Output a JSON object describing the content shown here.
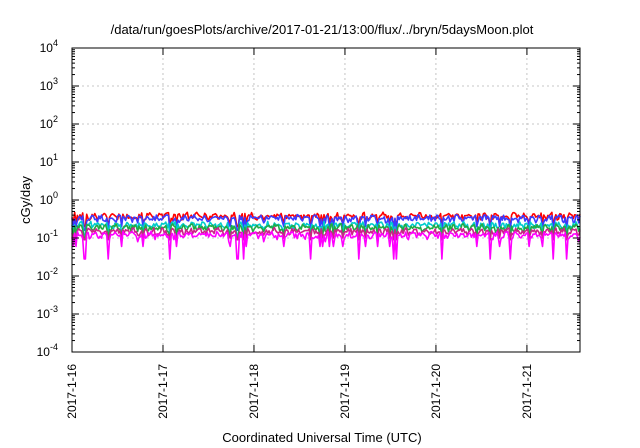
{
  "chart_data": {
    "type": "line",
    "title": "/data/run/goesPlots/archive/2017-01-21/13:00/flux/../bryn/5daysMoon.plot",
    "xlabel": "Coordinated Universal Time (UTC)",
    "ylabel": "cGy/day",
    "x_range": [
      "2017-01-16",
      "2017-01-21 14:00"
    ],
    "x_ticks": [
      "2017-1-16",
      "2017-1-17",
      "2017-1-18",
      "2017-1-19",
      "2017-1-20",
      "2017-1-21"
    ],
    "y_scale": "log",
    "ylim": [
      0.0001,
      10000
    ],
    "y_ticks": [
      {
        "base": "10",
        "exp": "-4"
      },
      {
        "base": "10",
        "exp": "-3"
      },
      {
        "base": "10",
        "exp": "-2"
      },
      {
        "base": "10",
        "exp": "-1"
      },
      {
        "base": "10",
        "exp": "0"
      },
      {
        "base": "10",
        "exp": "1"
      },
      {
        "base": "10",
        "exp": "2"
      },
      {
        "base": "10",
        "exp": "3"
      },
      {
        "base": "10",
        "exp": "4"
      }
    ],
    "grid": true,
    "series": [
      {
        "color": "#ff0000",
        "baseline": 0.38,
        "dips": [
          0.25,
          0.2,
          0.3
        ]
      },
      {
        "color": "#3b3bff",
        "baseline": 0.33,
        "dips": [
          0.2,
          0.16,
          0.25
        ]
      },
      {
        "color": "#00cccc",
        "baseline": 0.22,
        "dips": [
          0.14,
          0.12,
          0.17
        ]
      },
      {
        "color": "#22aa44",
        "baseline": 0.19,
        "dips": [
          0.12,
          0.1,
          0.15
        ]
      },
      {
        "color": "#cc2288",
        "baseline": 0.15,
        "dips": [
          0.1,
          0.09,
          0.12
        ]
      },
      {
        "color": "#ff00ff",
        "baseline": 0.12,
        "dips": [
          0.06,
          0.028,
          0.08
        ]
      }
    ]
  }
}
